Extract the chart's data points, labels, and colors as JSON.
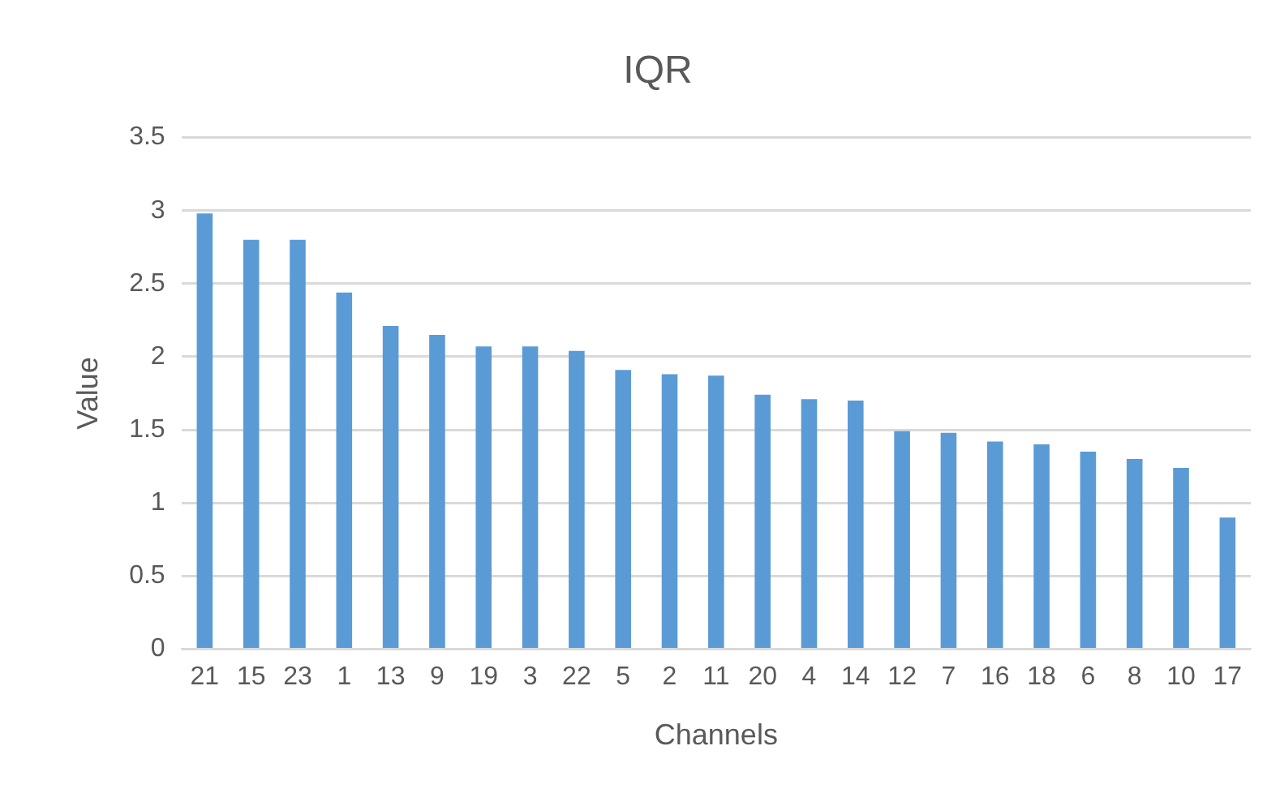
{
  "chart_data": {
    "type": "bar",
    "title": "IQR",
    "xlabel": "Channels",
    "ylabel": "Value",
    "categories": [
      "21",
      "15",
      "23",
      "1",
      "13",
      "9",
      "19",
      "3",
      "22",
      "5",
      "2",
      "11",
      "20",
      "4",
      "14",
      "12",
      "7",
      "16",
      "18",
      "6",
      "8",
      "10",
      "17"
    ],
    "values": [
      2.98,
      2.8,
      2.8,
      2.44,
      2.21,
      2.15,
      2.07,
      2.07,
      2.04,
      1.91,
      1.88,
      1.87,
      1.74,
      1.71,
      1.7,
      1.49,
      1.48,
      1.42,
      1.4,
      1.35,
      1.3,
      1.24,
      0.9
    ],
    "color": "#5b9bd5",
    "ylim": [
      0,
      3.5
    ],
    "yticks": [
      0,
      0.5,
      1,
      1.5,
      2,
      2.5,
      3,
      3.5
    ],
    "grid": "y"
  }
}
